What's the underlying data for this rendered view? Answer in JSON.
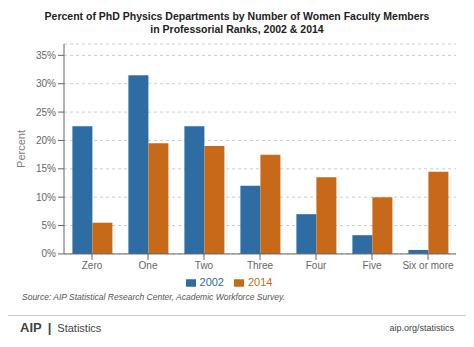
{
  "chart_data": {
    "type": "bar",
    "title": "Percent of PhD Physics Departments by Number of Women Faculty Members",
    "subtitle": "in Professorial Ranks, 2002 & 2014",
    "categories": [
      "Zero",
      "One",
      "Two",
      "Three",
      "Four",
      "Five",
      "Six or more"
    ],
    "series": [
      {
        "name": "2002",
        "color": "#2E6DA4",
        "values": [
          22.5,
          31.5,
          22.5,
          12.0,
          7.0,
          3.3,
          0.7
        ]
      },
      {
        "name": "2014",
        "color": "#C8691A",
        "values": [
          5.5,
          19.5,
          19.0,
          17.5,
          13.5,
          10.0,
          14.5
        ]
      }
    ],
    "ylabel": "Percent",
    "ylim": [
      0,
      37
    ],
    "yticks": [
      {
        "value": 0,
        "label": "0%"
      },
      {
        "value": 5,
        "label": "5%"
      },
      {
        "value": 10,
        "label": "10%"
      },
      {
        "value": 15,
        "label": "15%"
      },
      {
        "value": 20,
        "label": "20%"
      },
      {
        "value": 25,
        "label": "25%"
      },
      {
        "value": 30,
        "label": "30%"
      },
      {
        "value": 35,
        "label": "35%"
      }
    ],
    "grid": true,
    "legend": "bottom",
    "annotations": [
      "Source: AIP Statistical Research Center, Academic Workforce Survey.",
      "AIP",
      "|",
      "Statistics",
      "aip.org/statistics"
    ]
  }
}
